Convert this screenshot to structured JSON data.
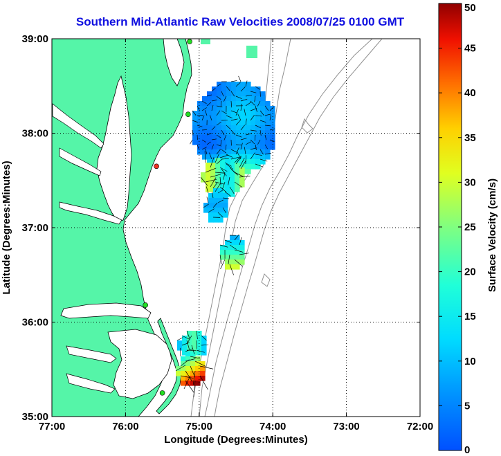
{
  "title": "Southern Mid-Atlantic Raw Velocities 2008/07/25 0100 GMT",
  "x_axis": {
    "label": "Longitude (Degrees:Minutes)",
    "ticks": [
      "77:00",
      "76:00",
      "75:00",
      "74:00",
      "73:00",
      "72:00"
    ]
  },
  "y_axis": {
    "label": "Latitude (Degrees:Minutes)",
    "ticks": [
      "39:00",
      "38:00",
      "37:00",
      "36:00",
      "35:00"
    ]
  },
  "colorbar": {
    "label": "Surface Velocity (cm/s)",
    "ticks": [
      "50",
      "45",
      "40",
      "35",
      "30",
      "25",
      "20",
      "15",
      "10",
      "5",
      "0"
    ],
    "min": 0,
    "max": 50
  },
  "colors": {
    "title": "#1010e0",
    "land": "#55f5a8",
    "sea": "#ffffff",
    "bathymetry": "#909090",
    "grid": "#000000",
    "station": "#22dd22",
    "station_alt": "#ee3322"
  },
  "map_extent": {
    "lon_min": -77,
    "lon_max": -72,
    "lat_min": 35,
    "lat_max": 39
  },
  "stations": [
    {
      "lon": -75.13,
      "lat": 38.97,
      "status": "active"
    },
    {
      "lon": -75.15,
      "lat": 38.2,
      "status": "active"
    },
    {
      "lon": -75.58,
      "lat": 37.65,
      "status": "inactive"
    },
    {
      "lon": -75.73,
      "lat": 36.18,
      "status": "active"
    },
    {
      "lon": -75.5,
      "lat": 35.25,
      "status": "active"
    }
  ]
}
